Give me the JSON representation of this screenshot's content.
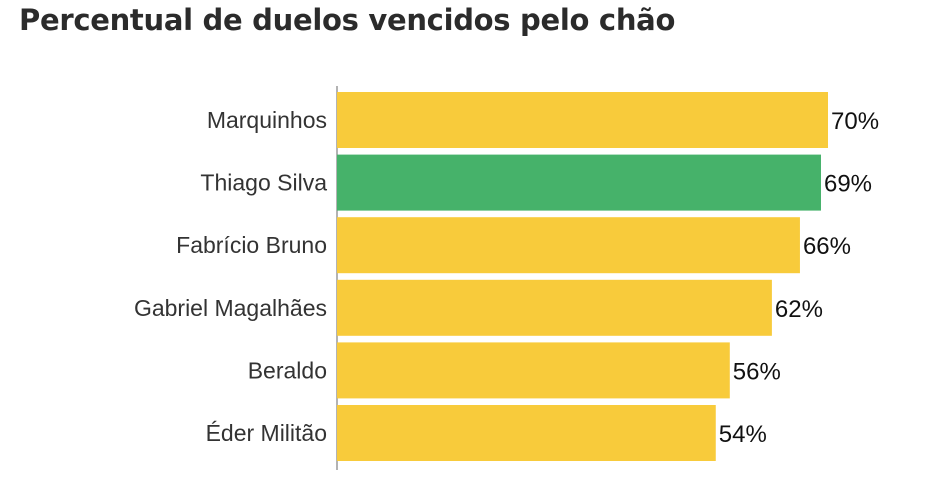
{
  "chart_data": {
    "type": "bar",
    "orientation": "horizontal",
    "title": "Percentual de duelos vencidos pelo chão",
    "categories": [
      "Marquinhos",
      "Thiago Silva",
      "Fabrício Bruno",
      "Gabriel Magalhães",
      "Beraldo",
      "Éder Militão"
    ],
    "values": [
      70,
      69,
      66,
      62,
      56,
      54
    ],
    "value_labels": [
      "70%",
      "69%",
      "66%",
      "62%",
      "56%",
      "54%"
    ],
    "colors": [
      "#f8cb3b",
      "#46b26a",
      "#f8cb3b",
      "#f8cb3b",
      "#f8cb3b",
      "#f8cb3b"
    ],
    "xlim": [
      0,
      70
    ],
    "grid": false,
    "legend": "none"
  }
}
